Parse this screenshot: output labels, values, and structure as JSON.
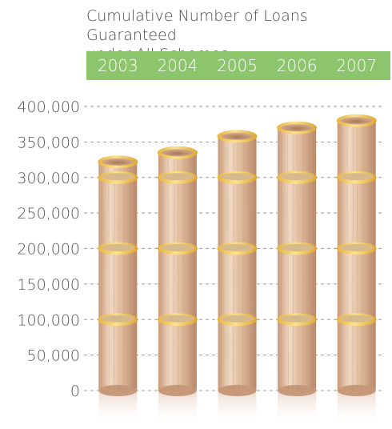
{
  "title_lines": [
    "Cumulative Number of Loans Guaranteed",
    "under All Schemes"
  ],
  "colors": {
    "header_band": "#8dc56c",
    "header_text": "#ffffff",
    "axis_text": "#555555",
    "gridline": "#9a9a9a",
    "cylinder_light": "#ecd3bc",
    "cylinder_dark": "#c49473",
    "ring": "#f2c14e",
    "ring_highlight": "#fbe28e"
  },
  "chart_data": {
    "type": "bar",
    "title": "Cumulative Number of Loans Guaranteed under All Schemes",
    "categories": [
      "2003",
      "2004",
      "2005",
      "2006",
      "2007"
    ],
    "values": [
      322000,
      335000,
      358000,
      370000,
      380000
    ],
    "xlabel": "",
    "ylabel": "",
    "ylim": [
      0,
      400000
    ],
    "yticks": [
      0,
      50000,
      100000,
      150000,
      200000,
      250000,
      300000,
      350000,
      400000
    ],
    "ytick_labels": [
      "0",
      "50,000",
      "100,000",
      "150,000",
      "200,000",
      "250,000",
      "300,000",
      "350,000",
      "400,000"
    ],
    "grid": true,
    "legend": "none",
    "category_position": "top-band"
  }
}
